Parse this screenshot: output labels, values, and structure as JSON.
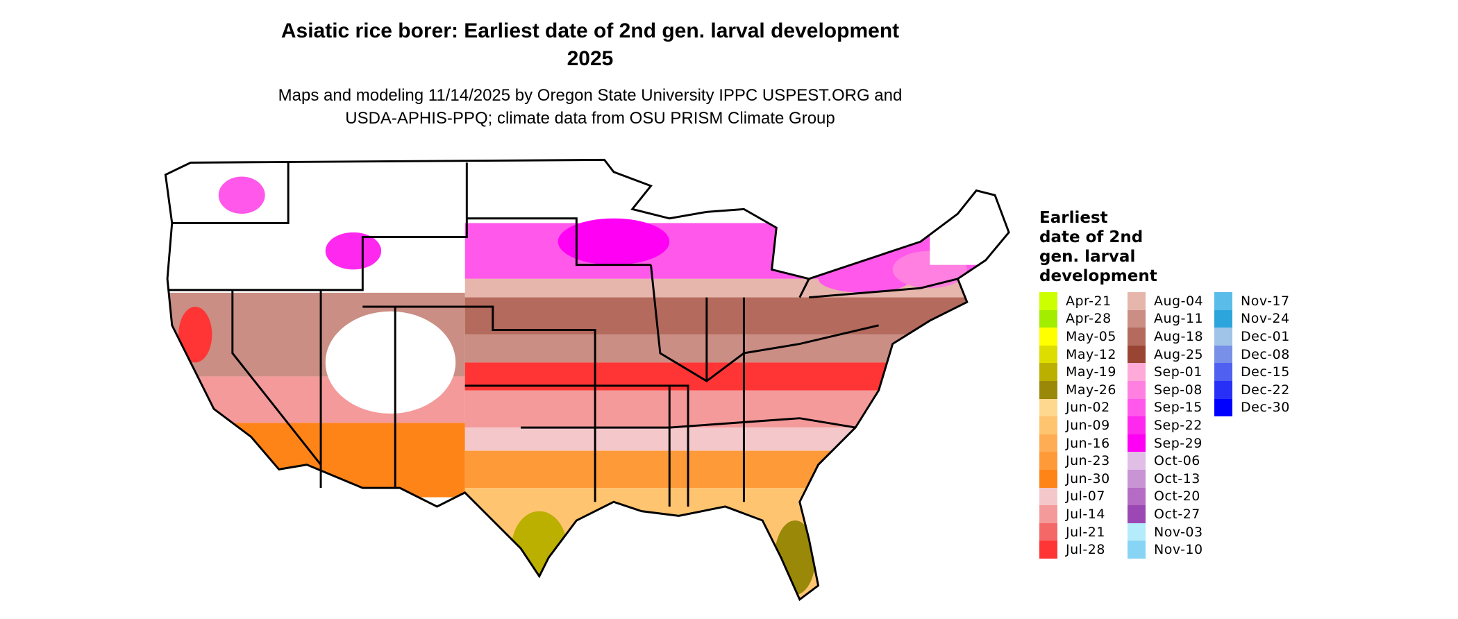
{
  "chart_data": {
    "type": "heatmap",
    "title": "Asiatic rice borer: Earliest date of 2nd gen. larval development",
    "year": "2025",
    "subtitle_line1": "Maps and modeling 11/14/2025 by Oregon State University IPPC USPEST.ORG and",
    "subtitle_line2": "USDA-APHIS-PPQ; climate data from OSU PRISM Climate Group",
    "legend_title": [
      "Earliest",
      "date of 2nd",
      "gen. larval",
      "development"
    ],
    "legend_placement": "right",
    "legend": [
      {
        "label": "Apr-21",
        "color": "#CCFF00"
      },
      {
        "label": "Apr-28",
        "color": "#A3EE00"
      },
      {
        "label": "May-05",
        "color": "#FFFF00"
      },
      {
        "label": "May-12",
        "color": "#DDDD00"
      },
      {
        "label": "May-19",
        "color": "#BBB000"
      },
      {
        "label": "May-26",
        "color": "#9A8808"
      },
      {
        "label": "Jun-02",
        "color": "#FFD890"
      },
      {
        "label": "Jun-09",
        "color": "#FFC470"
      },
      {
        "label": "Jun-16",
        "color": "#FFAD55"
      },
      {
        "label": "Jun-23",
        "color": "#FF9A38"
      },
      {
        "label": "Jun-30",
        "color": "#FF8418"
      },
      {
        "label": "Jul-07",
        "color": "#F4C8CA"
      },
      {
        "label": "Jul-14",
        "color": "#F49A9A"
      },
      {
        "label": "Jul-21",
        "color": "#F56868"
      },
      {
        "label": "Jul-28",
        "color": "#FF3535"
      },
      {
        "label": "Aug-04",
        "color": "#E6B5AC"
      },
      {
        "label": "Aug-11",
        "color": "#CA8E84"
      },
      {
        "label": "Aug-18",
        "color": "#B46A5C"
      },
      {
        "label": "Aug-25",
        "color": "#9A4534"
      },
      {
        "label": "Sep-01",
        "color": "#FFAAD8"
      },
      {
        "label": "Sep-08",
        "color": "#FF80E0"
      },
      {
        "label": "Sep-15",
        "color": "#FF58EA"
      },
      {
        "label": "Sep-22",
        "color": "#FF28EE"
      },
      {
        "label": "Sep-29",
        "color": "#FF00F5"
      },
      {
        "label": "Oct-06",
        "color": "#E0BEE6"
      },
      {
        "label": "Oct-13",
        "color": "#C894D4"
      },
      {
        "label": "Oct-20",
        "color": "#B46CC4"
      },
      {
        "label": "Oct-27",
        "color": "#9C48B4"
      },
      {
        "label": "Nov-03",
        "color": "#B4ECFC"
      },
      {
        "label": "Nov-10",
        "color": "#88D4F4"
      },
      {
        "label": "Nov-17",
        "color": "#5ABCE8"
      },
      {
        "label": "Nov-24",
        "color": "#2CA4DC"
      },
      {
        "label": "Dec-01",
        "color": "#A0C4E8"
      },
      {
        "label": "Dec-08",
        "color": "#7890E8"
      },
      {
        "label": "Dec-15",
        "color": "#5060F0"
      },
      {
        "label": "Dec-22",
        "color": "#2830F8"
      },
      {
        "label": "Dec-30",
        "color": "#0000FF"
      }
    ],
    "bands_north_to_south": [
      "Sep-15",
      "Aug-18",
      "Jul-28",
      "Jul-07",
      "Jun-23",
      "May-19"
    ]
  }
}
